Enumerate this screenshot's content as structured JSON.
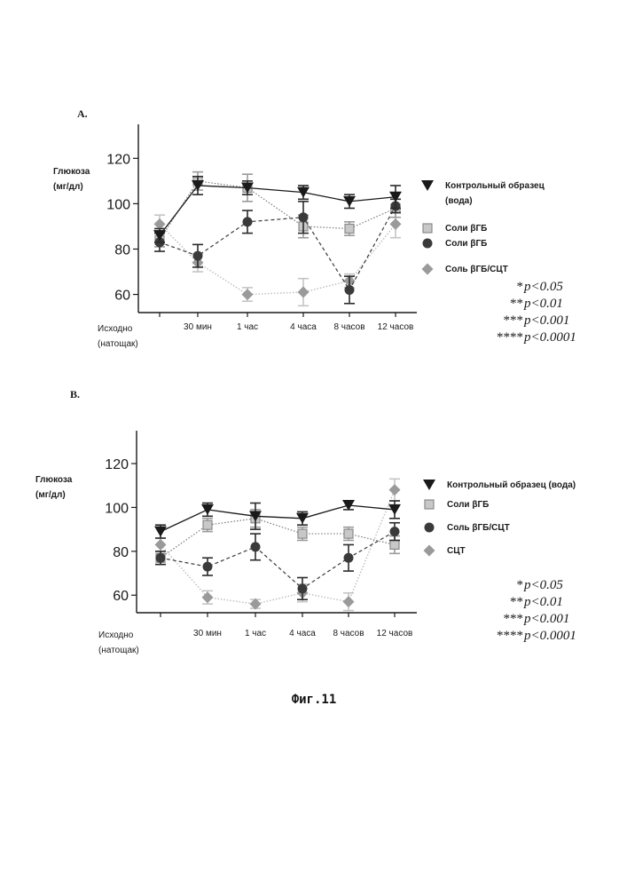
{
  "figure_caption": "Фиг.11",
  "colors": {
    "control": "#1a1a1a",
    "dark_circle": "#3a3a3a",
    "light_square_fill": "#c8c8c8",
    "light_square_stroke": "#8a8a8a",
    "diamond_mid": "#9a9a9a",
    "diamond_light": "#cfcfcf"
  },
  "chart_data": [
    {
      "panel_label": "A.",
      "type": "line",
      "ylabel_line1": "Глюкоза",
      "ylabel_line2": "(мг/дл)",
      "ylim": [
        52,
        135
      ],
      "yticks": [
        60,
        80,
        100,
        120
      ],
      "categories": [
        "Исходно\n(натощак)",
        "30 мин",
        "1 час",
        "4 часа",
        "8 часов",
        "12 часов"
      ],
      "series": [
        {
          "name": "Контрольный образец\n(вода)",
          "marker": "triangle-down",
          "style": "solid",
          "values": [
            86,
            108,
            107,
            105,
            101,
            103
          ],
          "errors": [
            3,
            4,
            3,
            3,
            3,
            5
          ]
        },
        {
          "name": "Соли βГБ",
          "marker": "square",
          "style": "dotted",
          "values": [
            84,
            110,
            107,
            90,
            89,
            98
          ],
          "errors": [
            3,
            4,
            6,
            5,
            3,
            4
          ]
        },
        {
          "name": "Соли βГБ",
          "marker": "circle",
          "style": "dashed",
          "values": [
            83,
            77,
            92,
            94,
            62,
            99
          ],
          "errors": [
            4,
            5,
            5,
            7,
            6,
            3
          ]
        },
        {
          "name": "Соль βГБ/СЦТ",
          "marker": "diamond",
          "style": "dotted-light",
          "values": [
            91,
            74,
            60,
            61,
            66,
            91
          ],
          "errors": [
            4,
            4,
            3,
            6,
            3,
            6
          ]
        }
      ],
      "significance": [
        {
          "stars": "*",
          "text": "p<0.05"
        },
        {
          "stars": "**",
          "text": "p<0.01"
        },
        {
          "stars": "***",
          "text": "p<0.001"
        },
        {
          "stars": "****",
          "text": "p<0.0001"
        }
      ]
    },
    {
      "panel_label": "B.",
      "type": "line",
      "ylabel_line1": "Глюкоза",
      "ylabel_line2": "(мг/дл)",
      "ylim": [
        52,
        135
      ],
      "yticks": [
        60,
        80,
        100,
        120
      ],
      "categories": [
        "Исходно\n(натощак)",
        "30 мин",
        "1 час",
        "4 часа",
        "8 часов",
        "12 часов"
      ],
      "series": [
        {
          "name": "Контрольный образец (вода)",
          "marker": "triangle-down",
          "style": "solid",
          "values": [
            89,
            99,
            96,
            95,
            101,
            99
          ],
          "errors": [
            3,
            3,
            6,
            3,
            2,
            4
          ]
        },
        {
          "name": "Соли βГБ",
          "marker": "square",
          "style": "dotted",
          "values": [
            77,
            92,
            95,
            88,
            88,
            83
          ],
          "errors": [
            3,
            3,
            4,
            3,
            3,
            4
          ]
        },
        {
          "name": "Соль βГБ/СЦТ",
          "marker": "circle",
          "style": "dashed",
          "values": [
            77,
            73,
            82,
            63,
            77,
            89
          ],
          "errors": [
            3,
            4,
            6,
            5,
            6,
            4
          ]
        },
        {
          "name": "СЦТ",
          "marker": "diamond",
          "style": "dotted-light",
          "values": [
            83,
            59,
            56,
            61,
            57,
            108
          ],
          "errors": [
            3,
            3,
            2,
            4,
            4,
            5
          ]
        }
      ],
      "significance": [
        {
          "stars": "*",
          "text": "p<0.05"
        },
        {
          "stars": "**",
          "text": "p<0.01"
        },
        {
          "stars": "***",
          "text": "p<0.001"
        },
        {
          "stars": "****",
          "text": "p<0.0001"
        }
      ]
    }
  ]
}
